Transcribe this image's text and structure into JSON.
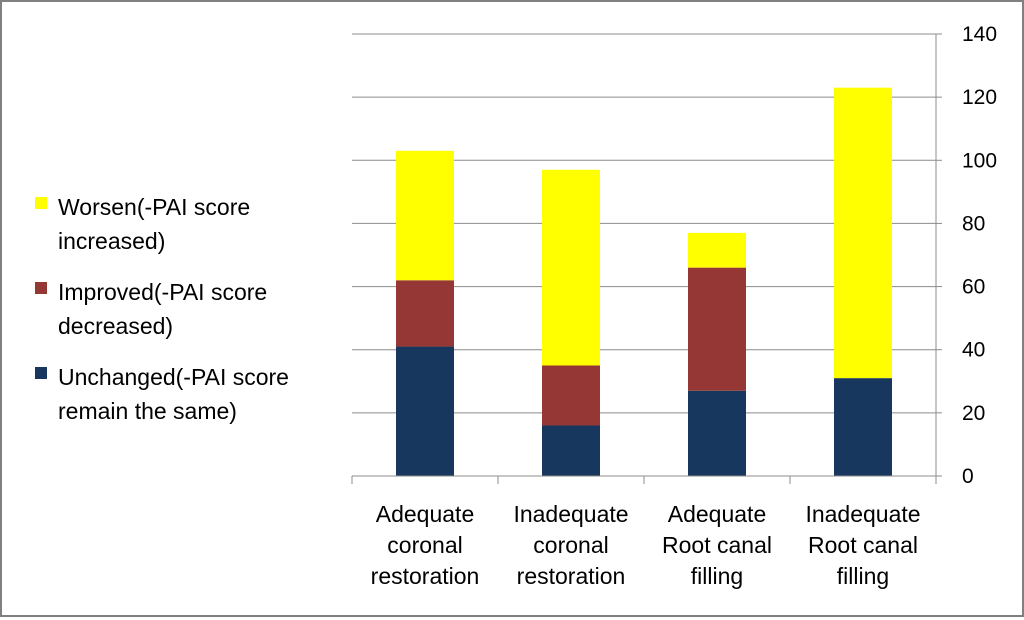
{
  "chart_data": {
    "type": "bar",
    "stacked": true,
    "categories": [
      [
        "Adequate",
        "coronal",
        "restoration"
      ],
      [
        "Inadequate",
        "coronal",
        "restoration"
      ],
      [
        "Adequate",
        "Root canal",
        "filling"
      ],
      [
        "Inadequate",
        "Root canal",
        "filling"
      ]
    ],
    "series": [
      {
        "name": "Unchanged(-PAI score remain the same)",
        "legend_lines": [
          "Unchanged(-PAI score",
          "remain the same)"
        ],
        "color": "#17375E",
        "values": [
          41,
          16,
          27,
          31
        ]
      },
      {
        "name": "Improved(-PAI score decreased)",
        "legend_lines": [
          "Improved(-PAI score",
          "decreased)"
        ],
        "color": "#953735",
        "values": [
          21,
          19,
          39,
          0
        ]
      },
      {
        "name": "Worsen(-PAI score increased)",
        "legend_lines": [
          "Worsen(-PAI score",
          "increased)"
        ],
        "color": "#FFFF00",
        "values": [
          41,
          62,
          11,
          92
        ]
      }
    ],
    "legend_order": [
      2,
      1,
      0
    ],
    "ylim": [
      0,
      140
    ],
    "yticks": [
      0,
      20,
      40,
      60,
      80,
      100,
      120,
      140
    ],
    "y_axis_position": "right",
    "grid": true,
    "legend_position": "left",
    "title": "",
    "xlabel": "",
    "ylabel": ""
  }
}
